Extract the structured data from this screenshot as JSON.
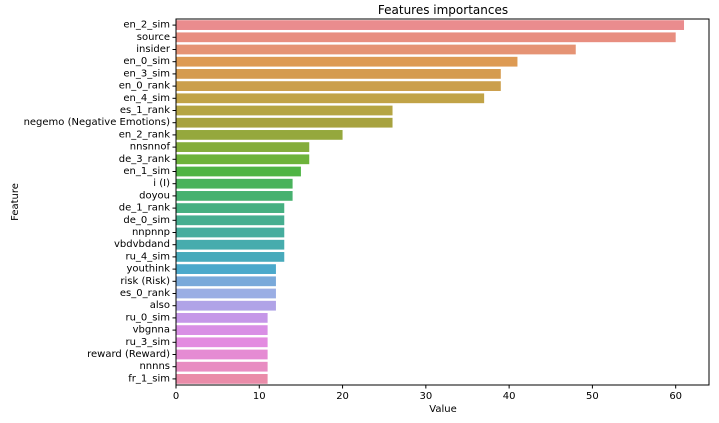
{
  "chart_data": {
    "type": "bar",
    "orientation": "horizontal",
    "title": "Features importances",
    "xlabel": "Value",
    "ylabel": "Feature",
    "xlim": [
      0,
      64
    ],
    "xticks": [
      0,
      10,
      20,
      30,
      40,
      50,
      60
    ],
    "grid": false,
    "legend": "none",
    "categories": [
      "en_2_sim",
      "source",
      "insider",
      "en_0_sim",
      "en_3_sim",
      "en_0_rank",
      "en_4_sim",
      "es_1_rank",
      "negemo (Negative Emotions)",
      "en_2_rank",
      "nnsnnof",
      "de_3_rank",
      "en_1_sim",
      "i (I)",
      "doyou",
      "de_1_rank",
      "de_0_sim",
      "nnpnnp",
      "vbdvbdand",
      "ru_4_sim",
      "youthink",
      "risk (Risk)",
      "es_0_rank",
      "also",
      "ru_0_sim",
      "vbgnna",
      "ru_3_sim",
      "reward (Reward)",
      "nnnns",
      "fr_1_sim"
    ],
    "values": [
      61,
      60,
      48,
      41,
      39,
      39,
      37,
      26,
      26,
      20,
      16,
      16,
      15,
      14,
      14,
      13,
      13,
      13,
      13,
      13,
      12,
      12,
      12,
      12,
      11,
      11,
      11,
      11,
      11,
      11
    ],
    "colors": [
      "#ea8c8e",
      "#e88e80",
      "#e59374",
      "#dd9a53",
      "#d59b4f",
      "#cb9f4b",
      "#c1a347",
      "#b5a543",
      "#a7a23f",
      "#95a83d",
      "#84ad3b",
      "#6db33a",
      "#4fb444",
      "#49b25b",
      "#47b16f",
      "#46b081",
      "#46ae90",
      "#46ad9e",
      "#47acad",
      "#48aabb",
      "#4ba9cb",
      "#79a9da",
      "#9aaee4",
      "#b0a3e7",
      "#c597e8",
      "#d98fe5",
      "#e38be0",
      "#e58bd3",
      "#e88dc2",
      "#ea8ca9"
    ]
  }
}
